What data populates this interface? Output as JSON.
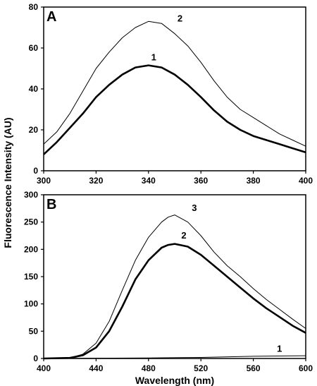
{
  "ylabel": "Fluorescence Intensity (AU)",
  "chart_data": [
    {
      "type": "line",
      "panel": "A",
      "xlim": [
        300,
        400
      ],
      "ylim": [
        0,
        80
      ],
      "xticks": [
        300,
        320,
        340,
        360,
        380,
        400
      ],
      "yticks": [
        0,
        20,
        40,
        60,
        80
      ],
      "xlabel": "",
      "ylabel": "Fluorescence Intensity (AU)",
      "grid": false,
      "series": [
        {
          "name": "1",
          "x": [
            300,
            305,
            310,
            315,
            320,
            325,
            330,
            335,
            340,
            345,
            350,
            355,
            360,
            365,
            370,
            375,
            380,
            385,
            390,
            395,
            400
          ],
          "values": [
            8,
            14,
            21,
            28,
            36,
            42,
            47,
            50.5,
            51.5,
            50.5,
            47,
            42,
            36,
            29.5,
            24,
            20,
            17,
            15,
            13,
            11,
            9
          ],
          "label_at": [
            342,
            54
          ]
        },
        {
          "name": "2",
          "x": [
            300,
            305,
            310,
            315,
            320,
            325,
            330,
            335,
            340,
            345,
            350,
            355,
            360,
            365,
            370,
            375,
            380,
            385,
            390,
            395,
            400
          ],
          "values": [
            13,
            19,
            28,
            39,
            50,
            58,
            65,
            70,
            73,
            72,
            67,
            61,
            53,
            44,
            36,
            30,
            26,
            22,
            18,
            15,
            12
          ],
          "label_at": [
            352,
            73
          ]
        }
      ]
    },
    {
      "type": "line",
      "panel": "B",
      "xlim": [
        400,
        600
      ],
      "ylim": [
        0,
        300
      ],
      "xticks": [
        400,
        440,
        480,
        520,
        560,
        600
      ],
      "yticks": [
        0,
        50,
        100,
        150,
        200,
        250,
        300
      ],
      "xlabel": "Wavelength (nm)",
      "ylabel": "Fluorescence Intensity (AU)",
      "grid": false,
      "series": [
        {
          "name": "1",
          "x": [
            400,
            440,
            480,
            520,
            560,
            600
          ],
          "values": [
            0,
            0.5,
            1,
            2,
            4,
            5
          ],
          "label_at": [
            580,
            12
          ]
        },
        {
          "name": "2",
          "x": [
            400,
            420,
            430,
            440,
            450,
            460,
            470,
            480,
            490,
            495,
            500,
            510,
            520,
            530,
            540,
            550,
            560,
            570,
            580,
            590,
            600
          ],
          "values": [
            0,
            1,
            6,
            20,
            50,
            95,
            145,
            180,
            203,
            208,
            210,
            205,
            190,
            170,
            150,
            130,
            110,
            92,
            76,
            60,
            47
          ],
          "label_at": [
            507,
            220
          ]
        },
        {
          "name": "3",
          "x": [
            400,
            420,
            430,
            440,
            450,
            460,
            470,
            480,
            490,
            495,
            500,
            510,
            520,
            530,
            540,
            550,
            560,
            570,
            580,
            590,
            600
          ],
          "values": [
            0,
            1,
            8,
            28,
            68,
            125,
            180,
            222,
            250,
            259,
            263,
            250,
            225,
            195,
            170,
            150,
            128,
            108,
            90,
            72,
            55
          ],
          "label_at": [
            515,
            270
          ]
        }
      ]
    }
  ]
}
